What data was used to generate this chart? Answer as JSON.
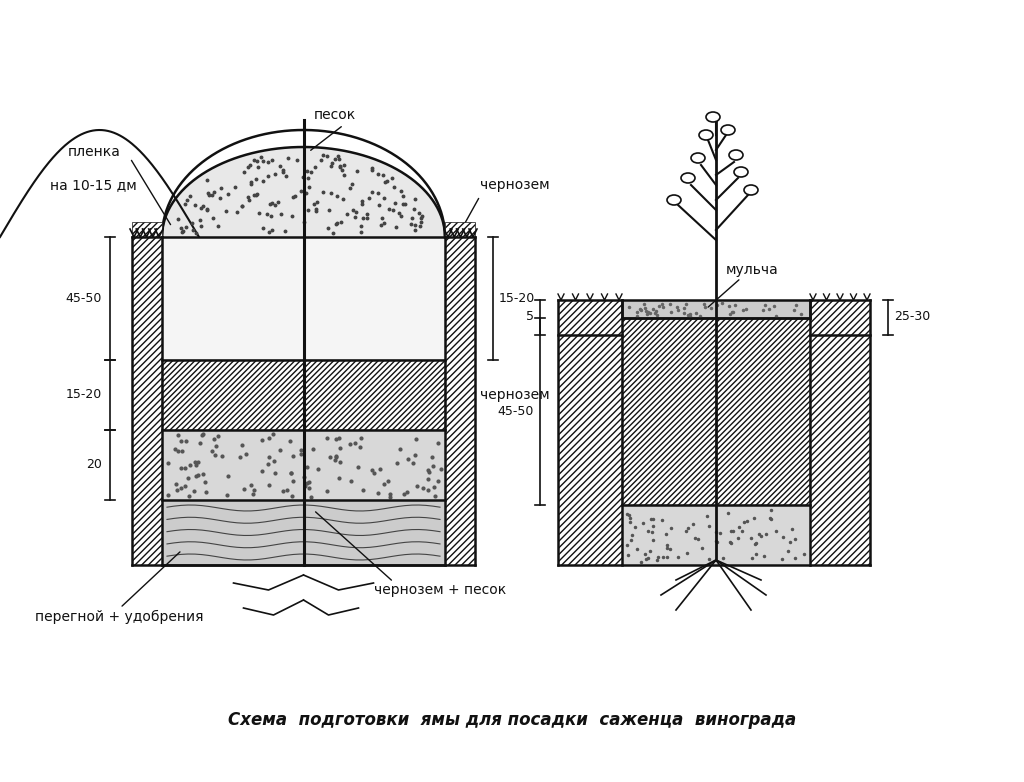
{
  "bg_color": "#ffffff",
  "title": "Схема  подготовки  ямы для посадки  саженца  винограда",
  "title_fontsize": 12,
  "lbl_plenka": "пленка",
  "lbl_na_dm": "на 10-15 дм",
  "lbl_pesok": "песок",
  "lbl_chernozem_top": "чернозем",
  "lbl_chernozem_mid": "чернозем",
  "lbl_chernozem_pesok": "чернозем + песок",
  "lbl_peregnoy": "перегной + удобрения",
  "lbl_mulcha": "мульча",
  "lbl_dim_45_50_L": "45-50",
  "lbl_dim_15_20_L": "15-20",
  "lbl_dim_20_L": "20",
  "lbl_dim_15_20_R": "15-20",
  "lbl_dim_5": "5",
  "lbl_dim_45_50_R": "45-50",
  "lbl_dim_25_30": "25-30"
}
